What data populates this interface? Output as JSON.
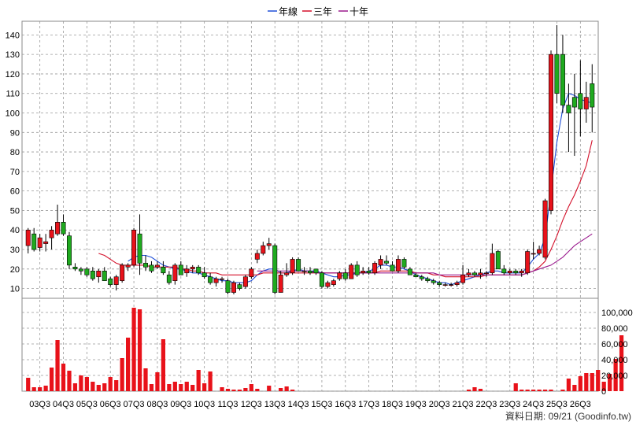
{
  "legend": [
    {
      "name": "年線",
      "color": "#1f4fd8"
    },
    {
      "name": "三年",
      "color": "#d4102a"
    },
    {
      "name": "十年",
      "color": "#9a1a8e"
    }
  ],
  "footer": {
    "label": "資料日期: 09/21",
    "source": "(Goodinfo.tw)"
  },
  "chart_data": [
    {
      "type": "candlestick",
      "title": "",
      "grid": true,
      "y_axis_side": "left",
      "ylim": [
        5,
        147
      ],
      "yticks": [
        10,
        20,
        30,
        40,
        50,
        60,
        70,
        80,
        90,
        100,
        110,
        120,
        130,
        140
      ],
      "x_ticks": [
        "03Q3",
        "04Q3",
        "05Q3",
        "06Q3",
        "07Q3",
        "08Q3",
        "09Q3",
        "10Q3",
        "11Q3",
        "12Q3",
        "13Q3",
        "14Q3",
        "15Q3",
        "16Q3",
        "17Q3",
        "18Q3",
        "19Q3",
        "20Q3",
        "21Q3",
        "22Q3",
        "23Q3",
        "24Q3",
        "25Q3",
        "26Q3"
      ],
      "candles": [
        {
          "o": 32,
          "h": 41,
          "l": 28,
          "c": 40
        },
        {
          "o": 38,
          "h": 41,
          "l": 29,
          "c": 30
        },
        {
          "o": 31,
          "h": 38,
          "l": 29,
          "c": 36
        },
        {
          "o": 33,
          "h": 38,
          "l": 29,
          "c": 34
        },
        {
          "o": 36,
          "h": 42,
          "l": 30,
          "c": 40
        },
        {
          "o": 38,
          "h": 53,
          "l": 37,
          "c": 44
        },
        {
          "o": 44,
          "h": 48,
          "l": 37,
          "c": 38
        },
        {
          "o": 37,
          "h": 39,
          "l": 20,
          "c": 22
        },
        {
          "o": 21,
          "h": 23,
          "l": 19,
          "c": 20
        },
        {
          "o": 20,
          "h": 21,
          "l": 17,
          "c": 19
        },
        {
          "o": 20,
          "h": 21,
          "l": 16,
          "c": 17
        },
        {
          "o": 19,
          "h": 21,
          "l": 14,
          "c": 15
        },
        {
          "o": 16,
          "h": 20,
          "l": 13,
          "c": 19
        },
        {
          "o": 19,
          "h": 21,
          "l": 14,
          "c": 14
        },
        {
          "o": 15,
          "h": 16,
          "l": 11,
          "c": 12
        },
        {
          "o": 12,
          "h": 17,
          "l": 9,
          "c": 16
        },
        {
          "o": 14,
          "h": 23,
          "l": 13,
          "c": 22
        },
        {
          "o": 21,
          "h": 23,
          "l": 19,
          "c": 22
        },
        {
          "o": 22,
          "h": 41,
          "l": 21,
          "c": 40
        },
        {
          "o": 38,
          "h": 48,
          "l": 17,
          "c": 23
        },
        {
          "o": 23,
          "h": 27,
          "l": 19,
          "c": 21
        },
        {
          "o": 22,
          "h": 24,
          "l": 18,
          "c": 19
        },
        {
          "o": 21,
          "h": 24,
          "l": 20,
          "c": 22
        },
        {
          "o": 21,
          "h": 24,
          "l": 17,
          "c": 18
        },
        {
          "o": 17,
          "h": 19,
          "l": 12,
          "c": 13
        },
        {
          "o": 14,
          "h": 23,
          "l": 12,
          "c": 22
        },
        {
          "o": 22,
          "h": 24,
          "l": 17,
          "c": 17
        },
        {
          "o": 18,
          "h": 22,
          "l": 16,
          "c": 20
        },
        {
          "o": 20,
          "h": 22,
          "l": 18,
          "c": 21
        },
        {
          "o": 21,
          "h": 22,
          "l": 17,
          "c": 18
        },
        {
          "o": 18,
          "h": 21,
          "l": 15,
          "c": 16
        },
        {
          "o": 16,
          "h": 18,
          "l": 12,
          "c": 13
        },
        {
          "o": 13,
          "h": 16,
          "l": 11,
          "c": 15
        },
        {
          "o": 15,
          "h": 16,
          "l": 13,
          "c": 15
        },
        {
          "o": 14,
          "h": 15,
          "l": 7,
          "c": 8
        },
        {
          "o": 8,
          "h": 14,
          "l": 7,
          "c": 13
        },
        {
          "o": 12,
          "h": 13,
          "l": 9,
          "c": 10
        },
        {
          "o": 11,
          "h": 17,
          "l": 10,
          "c": 16
        },
        {
          "o": 16,
          "h": 21,
          "l": 15,
          "c": 20
        },
        {
          "o": 25,
          "h": 30,
          "l": 23,
          "c": 28
        },
        {
          "o": 28,
          "h": 34,
          "l": 27,
          "c": 32
        },
        {
          "o": 32,
          "h": 36,
          "l": 30,
          "c": 33
        },
        {
          "o": 32,
          "h": 33,
          "l": 7,
          "c": 8
        },
        {
          "o": 8,
          "h": 19,
          "l": 8,
          "c": 17
        },
        {
          "o": 17,
          "h": 23,
          "l": 16,
          "c": 18
        },
        {
          "o": 18,
          "h": 26,
          "l": 17,
          "c": 25
        },
        {
          "o": 25,
          "h": 26,
          "l": 19,
          "c": 19
        },
        {
          "o": 19,
          "h": 21,
          "l": 17,
          "c": 19
        },
        {
          "o": 19,
          "h": 21,
          "l": 17,
          "c": 18
        },
        {
          "o": 20,
          "h": 20,
          "l": 17,
          "c": 18
        },
        {
          "o": 18,
          "h": 19,
          "l": 10,
          "c": 11
        },
        {
          "o": 11,
          "h": 14,
          "l": 10,
          "c": 13
        },
        {
          "o": 12,
          "h": 15,
          "l": 11,
          "c": 14
        },
        {
          "o": 15,
          "h": 19,
          "l": 14,
          "c": 18
        },
        {
          "o": 18,
          "h": 20,
          "l": 14,
          "c": 15
        },
        {
          "o": 15,
          "h": 23,
          "l": 15,
          "c": 22
        },
        {
          "o": 22,
          "h": 24,
          "l": 16,
          "c": 17
        },
        {
          "o": 18,
          "h": 21,
          "l": 17,
          "c": 19
        },
        {
          "o": 19,
          "h": 21,
          "l": 17,
          "c": 18
        },
        {
          "o": 18,
          "h": 24,
          "l": 17,
          "c": 23
        },
        {
          "o": 22,
          "h": 27,
          "l": 20,
          "c": 25
        },
        {
          "o": 24,
          "h": 27,
          "l": 22,
          "c": 23
        },
        {
          "o": 22,
          "h": 24,
          "l": 19,
          "c": 19
        },
        {
          "o": 19,
          "h": 27,
          "l": 18,
          "c": 25
        },
        {
          "o": 25,
          "h": 26,
          "l": 20,
          "c": 21
        },
        {
          "o": 20,
          "h": 21,
          "l": 17,
          "c": 17
        },
        {
          "o": 17,
          "h": 18,
          "l": 16,
          "c": 16
        },
        {
          "o": 16,
          "h": 17,
          "l": 14,
          "c": 15
        },
        {
          "o": 15,
          "h": 16,
          "l": 13,
          "c": 14
        },
        {
          "o": 14,
          "h": 15,
          "l": 12,
          "c": 13
        },
        {
          "o": 13,
          "h": 14,
          "l": 11,
          "c": 12
        },
        {
          "o": 12,
          "h": 13,
          "l": 11,
          "c": 12
        },
        {
          "o": 12,
          "h": 13,
          "l": 11,
          "c": 12
        },
        {
          "o": 12,
          "h": 14,
          "l": 11,
          "c": 13
        },
        {
          "o": 13,
          "h": 22,
          "l": 12,
          "c": 17
        },
        {
          "o": 17,
          "h": 20,
          "l": 16,
          "c": 18
        },
        {
          "o": 18,
          "h": 19,
          "l": 16,
          "c": 17
        },
        {
          "o": 17,
          "h": 20,
          "l": 15,
          "c": 18
        },
        {
          "o": 18,
          "h": 19,
          "l": 16,
          "c": 18
        },
        {
          "o": 18,
          "h": 33,
          "l": 17,
          "c": 28
        },
        {
          "o": 29,
          "h": 30,
          "l": 20,
          "c": 20
        },
        {
          "o": 20,
          "h": 22,
          "l": 17,
          "c": 18
        },
        {
          "o": 18,
          "h": 20,
          "l": 17,
          "c": 19
        },
        {
          "o": 19,
          "h": 20,
          "l": 17,
          "c": 18
        },
        {
          "o": 18,
          "h": 20,
          "l": 16,
          "c": 19
        },
        {
          "o": 18,
          "h": 30,
          "l": 17,
          "c": 29
        },
        {
          "o": 28,
          "h": 34,
          "l": 25,
          "c": 28
        },
        {
          "o": 28,
          "h": 32,
          "l": 27,
          "c": 30
        },
        {
          "o": 26,
          "h": 56,
          "l": 25,
          "c": 55
        },
        {
          "o": 50,
          "h": 132,
          "l": 48,
          "c": 130
        },
        {
          "o": 130,
          "h": 145,
          "l": 105,
          "c": 110
        },
        {
          "o": 130,
          "h": 140,
          "l": 100,
          "c": 104
        },
        {
          "o": 104,
          "h": 115,
          "l": 80,
          "c": 100
        },
        {
          "o": 108,
          "h": 120,
          "l": 78,
          "c": 103
        },
        {
          "o": 110,
          "h": 127,
          "l": 88,
          "c": 102
        },
        {
          "o": 102,
          "h": 116,
          "l": 95,
          "c": 108
        },
        {
          "o": 115,
          "h": 125,
          "l": 90,
          "c": 103
        }
      ],
      "series": [
        {
          "name": "年線",
          "values": [
            null,
            null,
            null,
            null,
            null,
            null,
            null,
            null,
            null,
            null,
            null,
            null,
            null,
            null,
            null,
            null,
            null,
            24,
            26,
            27,
            27,
            26,
            24,
            22,
            21,
            20,
            20,
            19,
            18,
            18,
            17,
            16,
            15,
            14,
            14,
            13,
            13,
            13,
            14,
            17,
            19,
            20,
            20,
            18,
            18,
            19,
            20,
            19,
            19,
            19,
            18,
            17,
            16,
            16,
            17,
            17,
            18,
            18,
            19,
            20,
            22,
            22,
            21,
            21,
            20,
            19,
            17,
            16,
            15,
            14,
            13,
            13,
            12,
            13,
            14,
            15,
            16,
            17,
            18,
            19,
            19,
            18,
            18,
            18,
            18,
            21,
            25,
            28,
            36,
            60,
            85,
            102,
            110,
            109,
            107,
            106,
            105
          ]
        },
        {
          "name": "三年",
          "values": [
            null,
            null,
            null,
            null,
            null,
            null,
            null,
            null,
            null,
            null,
            null,
            null,
            28,
            27,
            25,
            23,
            22,
            22,
            22,
            22,
            22,
            21,
            21,
            21,
            21,
            21,
            20,
            20,
            19,
            19,
            18,
            18,
            18,
            17,
            17,
            17,
            17,
            17,
            17,
            17,
            18,
            18,
            18,
            18,
            18,
            18,
            18,
            18,
            18,
            18,
            18,
            18,
            18,
            18,
            18,
            18,
            18,
            18,
            18,
            18,
            19,
            19,
            19,
            19,
            19,
            19,
            18,
            18,
            18,
            17,
            17,
            16,
            16,
            16,
            16,
            16,
            16,
            16,
            17,
            17,
            17,
            17,
            17,
            17,
            17,
            18,
            19,
            21,
            24,
            30,
            37,
            45,
            52,
            58,
            65,
            73,
            86
          ]
        },
        {
          "name": "十年",
          "values": [
            null,
            null,
            null,
            null,
            null,
            null,
            null,
            null,
            null,
            null,
            null,
            null,
            null,
            null,
            null,
            null,
            null,
            null,
            null,
            null,
            null,
            null,
            null,
            null,
            null,
            null,
            null,
            null,
            null,
            null,
            null,
            null,
            null,
            null,
            null,
            null,
            null,
            null,
            null,
            19,
            19,
            19,
            19,
            19,
            19,
            19,
            19,
            19,
            19,
            18,
            18,
            18,
            18,
            18,
            18,
            18,
            18,
            18,
            18,
            18,
            18,
            18,
            18,
            18,
            18,
            18,
            18,
            18,
            18,
            18,
            17,
            17,
            17,
            17,
            17,
            17,
            17,
            17,
            17,
            17,
            17,
            17,
            17,
            17,
            17,
            18,
            19,
            20,
            21,
            22,
            24,
            26,
            29,
            32,
            34,
            36,
            38
          ]
        }
      ]
    },
    {
      "type": "bar",
      "title": "",
      "y_axis_side": "right",
      "ylim": [
        0,
        118000
      ],
      "yticks": [
        "0",
        "20,000",
        "40,000",
        "60,000",
        "80,000",
        "100,000"
      ],
      "ytick_values": [
        0,
        20000,
        40000,
        60000,
        80000,
        100000
      ],
      "values": [
        17000,
        5000,
        5000,
        7000,
        30000,
        65000,
        35000,
        26000,
        10000,
        20000,
        18000,
        12000,
        8000,
        10000,
        18000,
        14000,
        42000,
        68000,
        106000,
        104000,
        29000,
        9000,
        24000,
        66000,
        9000,
        12000,
        9000,
        12000,
        8000,
        27000,
        10000,
        25000,
        0,
        5000,
        3000,
        2000,
        2000,
        4000,
        9000,
        3000,
        0,
        7000,
        0,
        4000,
        6000,
        2000,
        0,
        0,
        0,
        0,
        0,
        0,
        0,
        0,
        0,
        0,
        0,
        0,
        0,
        0,
        0,
        0,
        0,
        0,
        0,
        0,
        0,
        0,
        0,
        0,
        0,
        0,
        0,
        0,
        0,
        2000,
        5000,
        3000,
        0,
        0,
        0,
        0,
        0,
        10000,
        2000,
        2000,
        2000,
        2000,
        2000,
        2000,
        0,
        2000,
        16000,
        8000,
        19000,
        23000,
        23000,
        27000,
        12000,
        22000,
        41000,
        71000
      ]
    }
  ]
}
